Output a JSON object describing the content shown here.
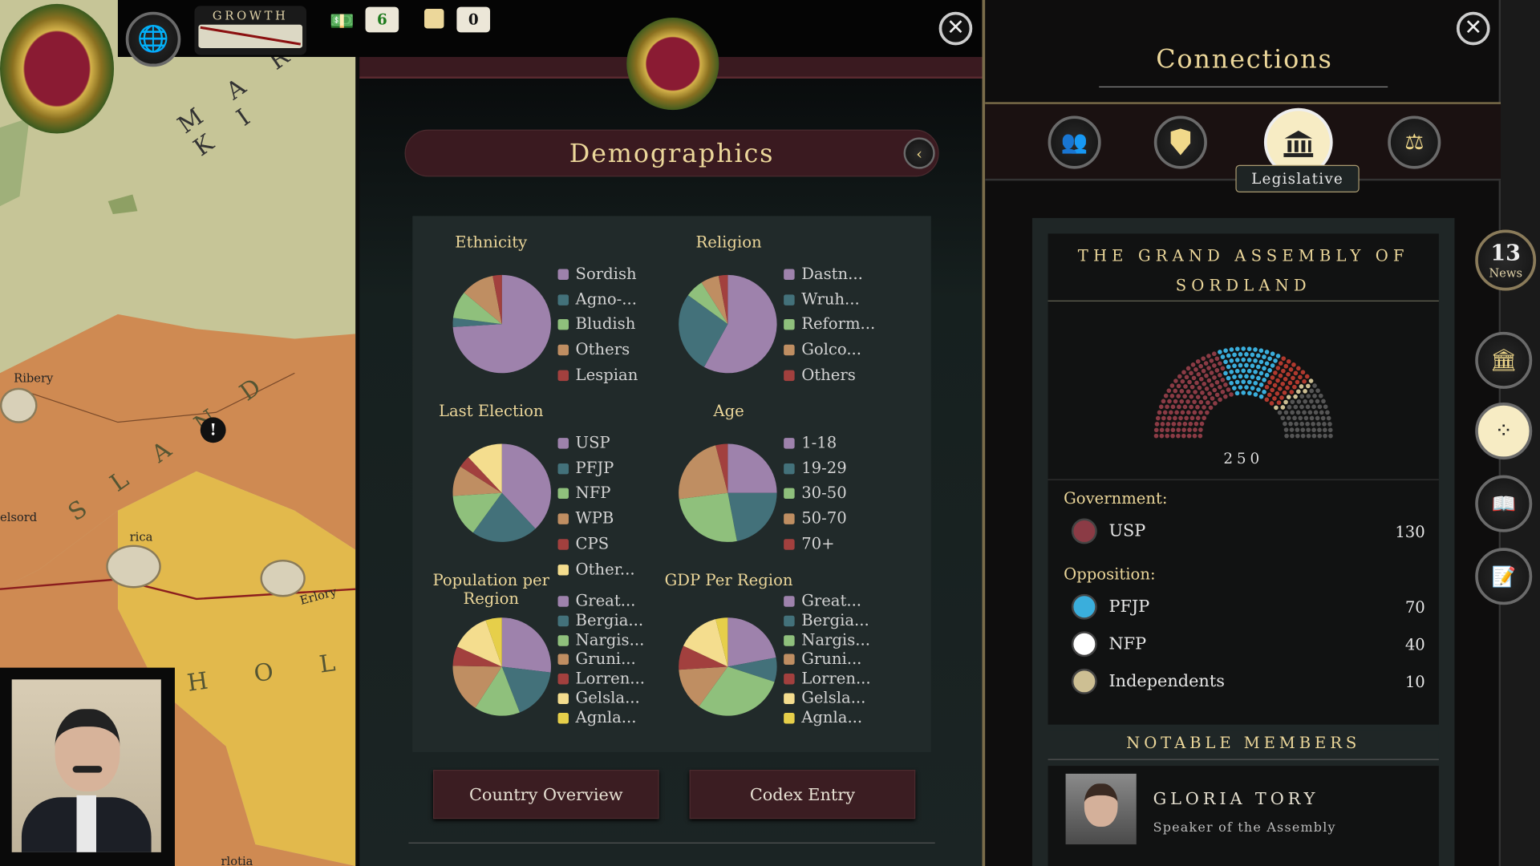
{
  "topbar": {
    "growth_label": "GROWTH",
    "money_value": "6",
    "stock_value": "0"
  },
  "map": {
    "labels": [
      "M A R K I",
      "S L A N D",
      "H O L",
      "Ribery",
      "Erlory",
      "elsord",
      "rica",
      "rlotia"
    ]
  },
  "demographics": {
    "title": "Demographics",
    "buttons": {
      "country_overview": "Country Overview",
      "codex_entry": "Codex Entry"
    }
  },
  "chart_data": [
    {
      "type": "pie",
      "title": "Ethnicity",
      "labels": [
        "Sordish",
        "Agno-...",
        "Bludish",
        "Others",
        "Lespian"
      ],
      "values": [
        74,
        3,
        9,
        11,
        3
      ],
      "colors": [
        "#9e82ac",
        "#43717a",
        "#8fc07c",
        "#bf8e62",
        "#a2403e"
      ]
    },
    {
      "type": "pie",
      "title": "Religion",
      "labels": [
        "Dastn...",
        "Wruh...",
        "Reform...",
        "Golco...",
        "Others"
      ],
      "values": [
        58,
        27,
        6,
        6,
        3
      ],
      "colors": [
        "#9e82ac",
        "#43717a",
        "#8fc07c",
        "#bf8e62",
        "#a2403e"
      ]
    },
    {
      "type": "pie",
      "title": "Last Election",
      "labels": [
        "USP",
        "PFJP",
        "NFP",
        "WPB",
        "CPS",
        "Other..."
      ],
      "values": [
        38,
        22,
        14,
        10,
        4,
        12
      ],
      "colors": [
        "#9e82ac",
        "#43717a",
        "#8fc07c",
        "#bf8e62",
        "#a2403e",
        "#f4dd8e"
      ]
    },
    {
      "type": "pie",
      "title": "Age",
      "labels": [
        "1-18",
        "19-29",
        "30-50",
        "50-70",
        "70+"
      ],
      "values": [
        25,
        22,
        26,
        23,
        4
      ],
      "colors": [
        "#9e82ac",
        "#43717a",
        "#8fc07c",
        "#bf8e62",
        "#a2403e"
      ]
    },
    {
      "type": "pie",
      "title": "Population per Region",
      "labels": [
        "Great...",
        "Bergia...",
        "Nargis...",
        "Gruni...",
        "Lorren...",
        "Gelsla...",
        "Agnla..."
      ],
      "values": [
        25,
        16,
        14,
        15,
        6,
        12,
        5
      ],
      "colors": [
        "#9e82ac",
        "#43717a",
        "#8fc07c",
        "#bf8e62",
        "#a2403e",
        "#f4dd8e",
        "#e6cf4a"
      ]
    },
    {
      "type": "pie",
      "title": "GDP Per Region",
      "labels": [
        "Great...",
        "Bergia...",
        "Nargis...",
        "Gruni...",
        "Lorren...",
        "Gelsla...",
        "Agnla..."
      ],
      "values": [
        22,
        8,
        30,
        14,
        8,
        14,
        4
      ],
      "colors": [
        "#9e82ac",
        "#43717a",
        "#8fc07c",
        "#bf8e62",
        "#a2403e",
        "#f4dd8e",
        "#e6cf4a"
      ]
    }
  ],
  "connections": {
    "title": "Connections",
    "tabs": [
      {
        "icon": "people-icon"
      },
      {
        "icon": "shield-icon"
      },
      {
        "icon": "legislature-icon",
        "label": "Legislative",
        "active": true
      },
      {
        "icon": "gavel-icon"
      }
    ],
    "assembly_title": "THE GRAND ASSEMBLY OF SORDLAND",
    "total_seats": "250",
    "government_label": "Government:",
    "opposition_label": "Opposition:",
    "government": [
      {
        "name": "USP",
        "seats": "130",
        "color": "#8b3b45"
      }
    ],
    "opposition": [
      {
        "name": "PFJP",
        "seats": "70",
        "color": "#3aaedc"
      },
      {
        "name": "NFP",
        "seats": "40",
        "color": "#b0392e"
      },
      {
        "name": "Independents",
        "seats": "10",
        "color": "#cdbf93"
      }
    ],
    "notable_members_label": "NOTABLE MEMBERS",
    "member": {
      "name": "GLORIA TORY",
      "role": "Speaker of the Assembly"
    }
  },
  "side_rail": {
    "news_count": "13",
    "news_label": "News"
  }
}
